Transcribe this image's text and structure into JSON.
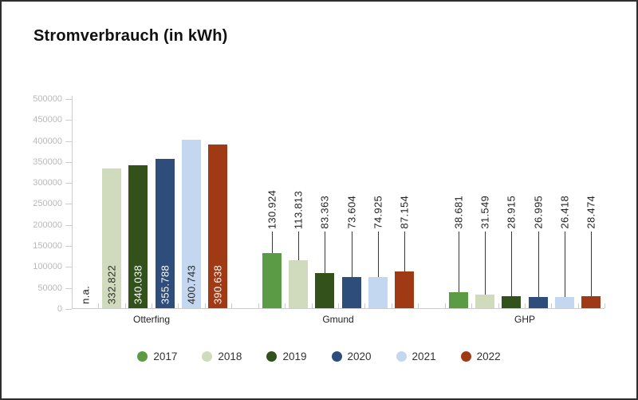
{
  "title": "Stromverbrauch (in kWh)",
  "colors": {
    "axis": "#cccccc",
    "y_tick_label": "#b9b9b9",
    "category_label": "#222222",
    "leader_line": "#3a3a3a",
    "frame_border": "#2e2e2e",
    "background": "#ffffff"
  },
  "chart_data": {
    "type": "bar",
    "title": "Stromverbrauch (in kWh)",
    "categories": [
      "Otterfing",
      "Gmund",
      "GHP"
    ],
    "series": [
      {
        "name": "2017",
        "color": "#5b9b45",
        "values": [
          null,
          130924,
          38681
        ],
        "labels": [
          "n.a.",
          "130.924",
          "38.681"
        ]
      },
      {
        "name": "2018",
        "color": "#d0dabd",
        "values": [
          332822,
          113813,
          31549
        ],
        "labels": [
          "332.822",
          "113.813",
          "31.549"
        ]
      },
      {
        "name": "2019",
        "color": "#33521b",
        "values": [
          340038,
          83363,
          28915
        ],
        "labels": [
          "340.038",
          "83.363",
          "28.915"
        ]
      },
      {
        "name": "2020",
        "color": "#2e4d7b",
        "values": [
          355788,
          73604,
          26995
        ],
        "labels": [
          "355.788",
          "73.604",
          "26.995"
        ]
      },
      {
        "name": "2021",
        "color": "#c3d7f0",
        "values": [
          400743,
          74925,
          26418
        ],
        "labels": [
          "400.743",
          "74.925",
          "26.418"
        ]
      },
      {
        "name": "2022",
        "color": "#a03a15",
        "values": [
          390638,
          87154,
          28474
        ],
        "labels": [
          "390.638",
          "87.154",
          "28.474"
        ]
      }
    ],
    "ylim": [
      0,
      500000
    ],
    "ytick_labels": [
      "0",
      "50000",
      "100000",
      "150000",
      "200000",
      "250000",
      "300000",
      "350000",
      "400000",
      "450000",
      "500000"
    ],
    "legend_position": "bottom",
    "legend_entries": [
      "2017",
      "2018",
      "2019",
      "2020",
      "2021",
      "2022"
    ],
    "grid": false,
    "bar_label_rotation": "vertical"
  }
}
